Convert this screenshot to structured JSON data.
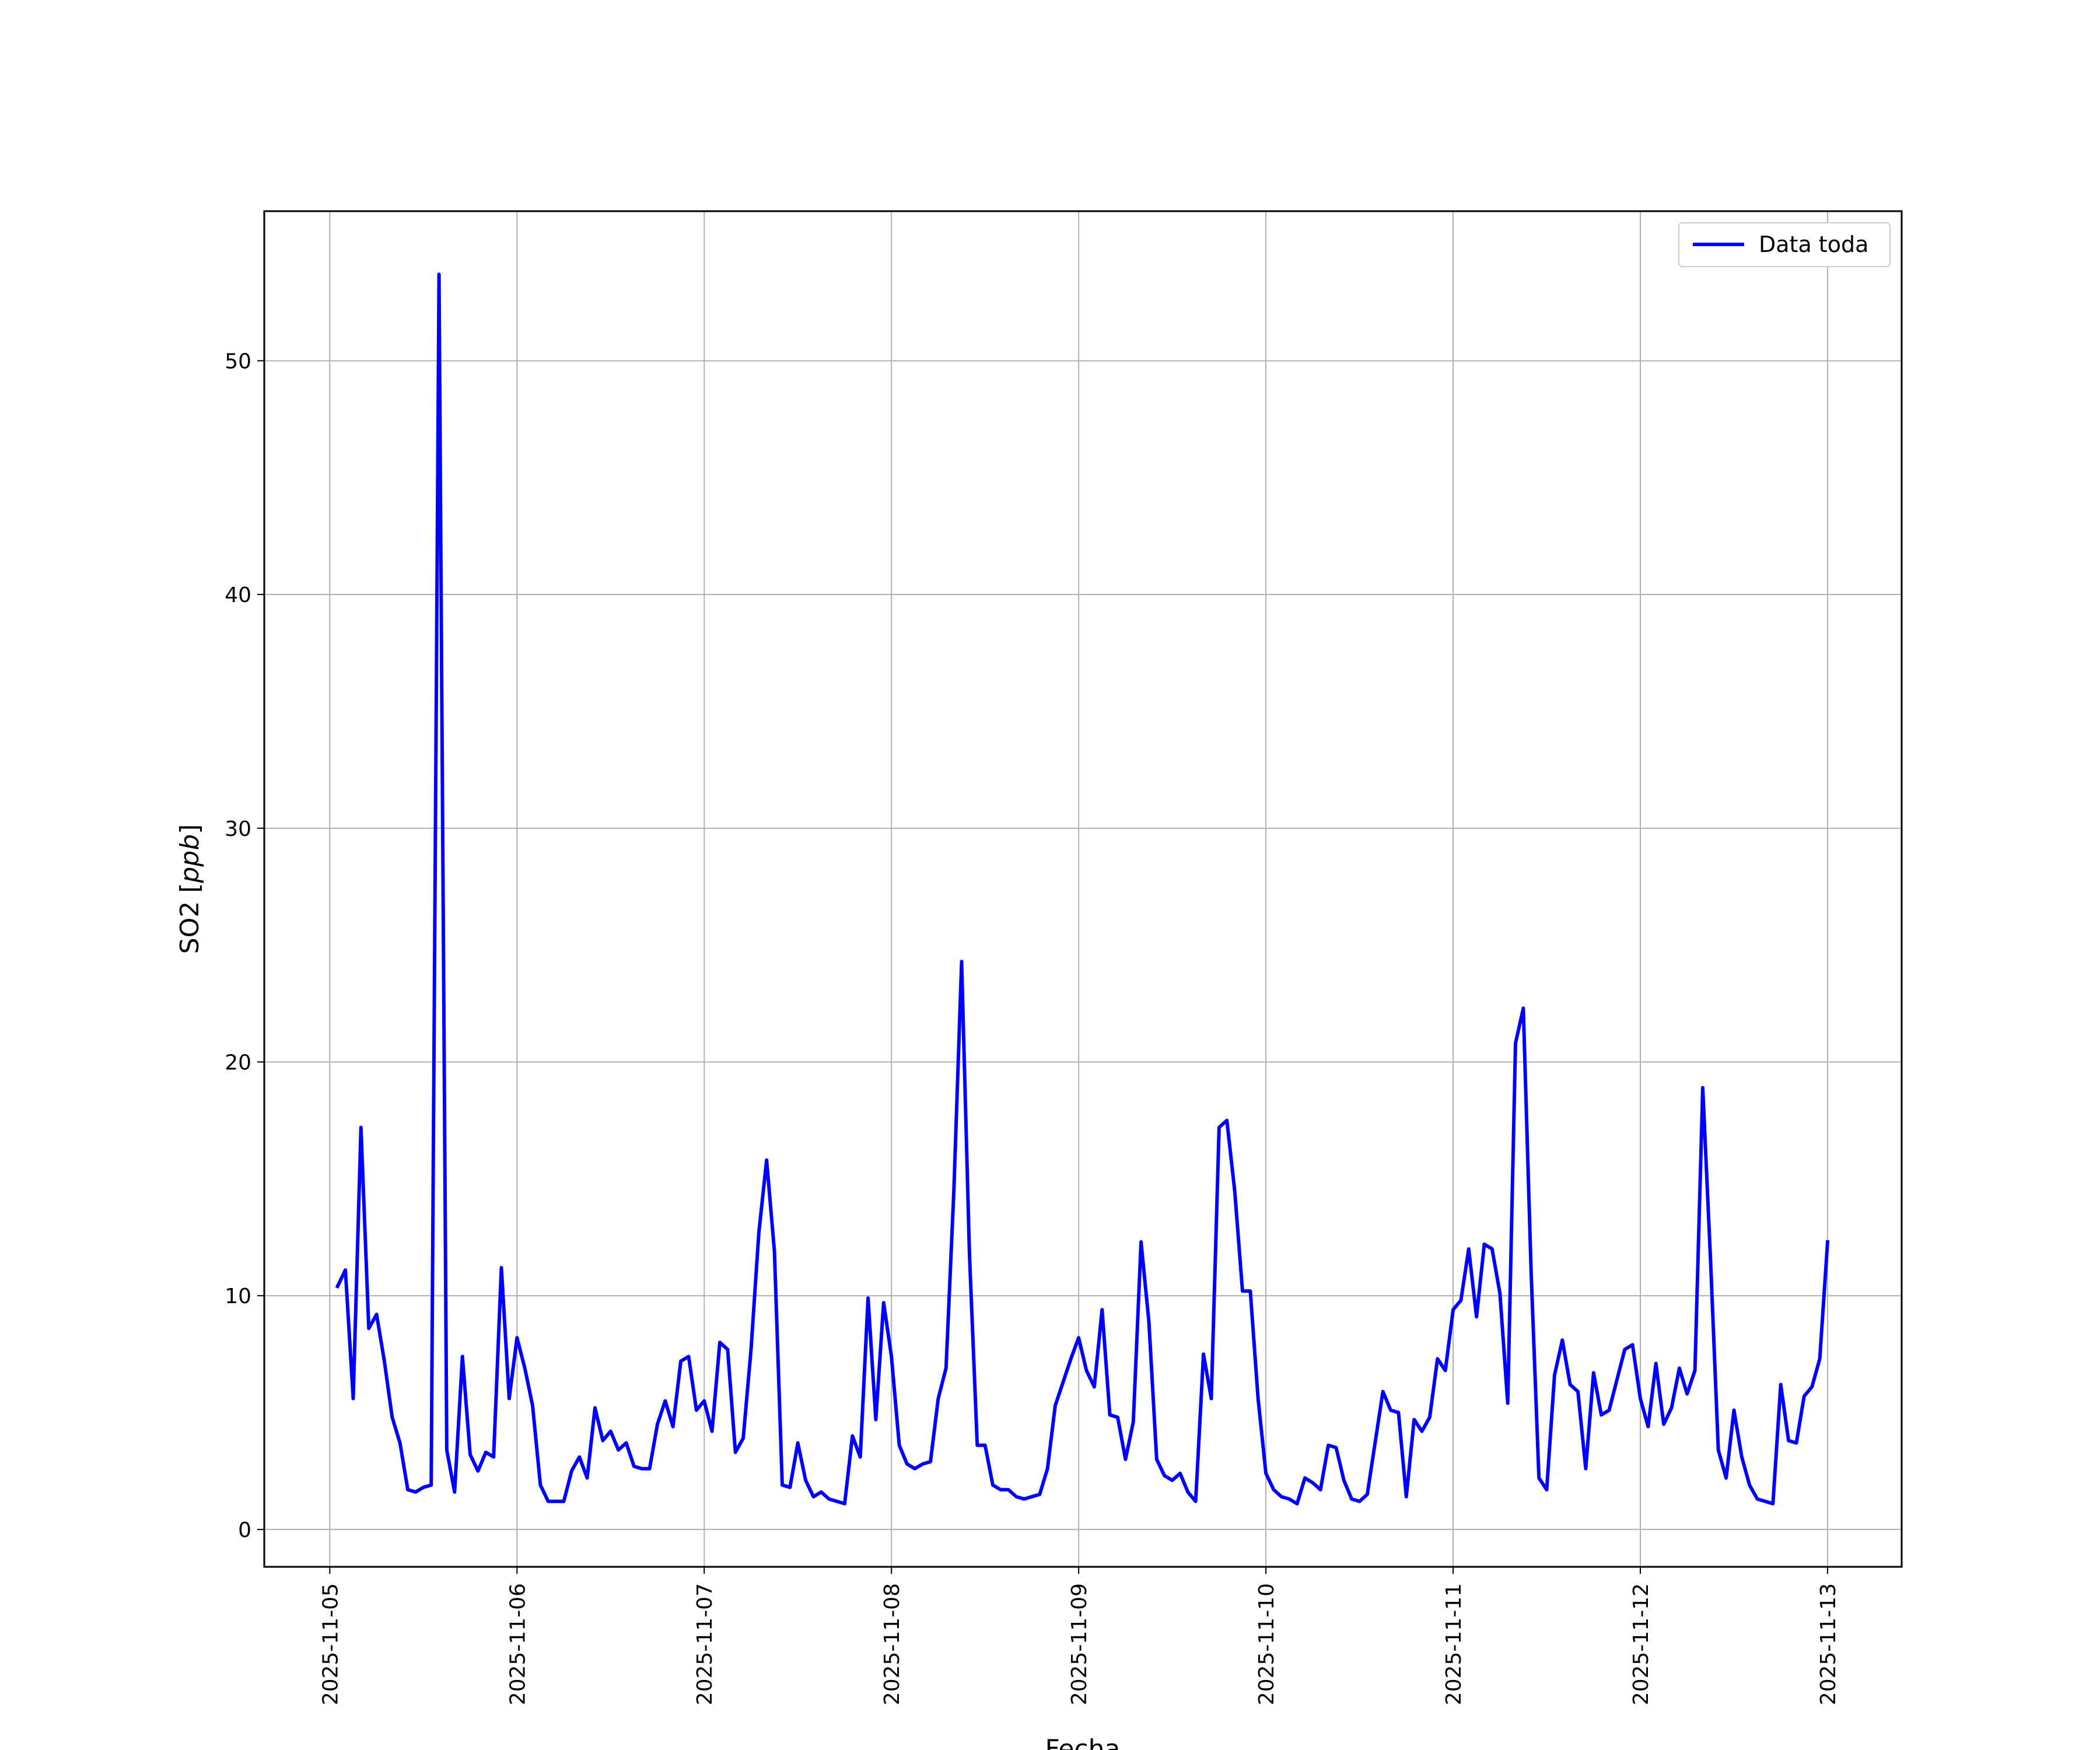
{
  "chart_data": {
    "type": "line",
    "xlabel": "Fecha",
    "ylabel": "SO2 [",
    "ylabel_unit": "ppb",
    "ylabel_close": "]",
    "ylim": [
      -1.6,
      56.4
    ],
    "xlim": [
      "2025-11-04 15:36",
      "2025-11-13 09:30"
    ],
    "grid": true,
    "legend": "top-right",
    "x_ticks": [
      "2025-11-05",
      "2025-11-06",
      "2025-11-07",
      "2025-11-08",
      "2025-11-09",
      "2025-11-10",
      "2025-11-11",
      "2025-11-12",
      "2025-11-13"
    ],
    "y_ticks": [
      "0",
      "10",
      "20",
      "30",
      "40",
      "50"
    ],
    "series": [
      {
        "name": "Data toda",
        "color": "#0000ff",
        "x": [
          "2025-11-05 01:00",
          "2025-11-05 02:00",
          "2025-11-05 03:00",
          "2025-11-05 04:00",
          "2025-11-05 05:00",
          "2025-11-05 06:00",
          "2025-11-05 07:00",
          "2025-11-05 08:00",
          "2025-11-05 09:00",
          "2025-11-05 10:00",
          "2025-11-05 11:00",
          "2025-11-05 12:00",
          "2025-11-05 13:00",
          "2025-11-05 14:00",
          "2025-11-05 15:00",
          "2025-11-05 16:00",
          "2025-11-05 17:00",
          "2025-11-05 18:00",
          "2025-11-05 19:00",
          "2025-11-05 20:00",
          "2025-11-05 21:00",
          "2025-11-05 22:00",
          "2025-11-05 23:00",
          "2025-11-06 00:00",
          "2025-11-06 01:00",
          "2025-11-06 02:00",
          "2025-11-06 03:00",
          "2025-11-06 04:00",
          "2025-11-06 05:00",
          "2025-11-06 06:00",
          "2025-11-06 07:00",
          "2025-11-06 08:00",
          "2025-11-06 09:00",
          "2025-11-06 10:00",
          "2025-11-06 11:00",
          "2025-11-06 12:00",
          "2025-11-06 13:00",
          "2025-11-06 14:00",
          "2025-11-06 15:00",
          "2025-11-06 16:00",
          "2025-11-06 17:00",
          "2025-11-06 18:00",
          "2025-11-06 19:00",
          "2025-11-06 20:00",
          "2025-11-06 21:00",
          "2025-11-06 22:00",
          "2025-11-06 23:00",
          "2025-11-07 00:00",
          "2025-11-07 01:00",
          "2025-11-07 02:00",
          "2025-11-07 03:00",
          "2025-11-07 04:00",
          "2025-11-07 05:00",
          "2025-11-07 06:00",
          "2025-11-07 07:00",
          "2025-11-07 08:00",
          "2025-11-07 09:00",
          "2025-11-07 10:00",
          "2025-11-07 11:00",
          "2025-11-07 12:00",
          "2025-11-07 13:00",
          "2025-11-07 14:00",
          "2025-11-07 15:00",
          "2025-11-07 16:00",
          "2025-11-07 17:00",
          "2025-11-07 18:00",
          "2025-11-07 19:00",
          "2025-11-07 20:00",
          "2025-11-07 21:00",
          "2025-11-07 22:00",
          "2025-11-07 23:00",
          "2025-11-08 00:00",
          "2025-11-08 01:00",
          "2025-11-08 02:00",
          "2025-11-08 03:00",
          "2025-11-08 04:00",
          "2025-11-08 05:00",
          "2025-11-08 06:00",
          "2025-11-08 07:00",
          "2025-11-08 08:00",
          "2025-11-08 09:00",
          "2025-11-08 10:00",
          "2025-11-08 11:00",
          "2025-11-08 12:00",
          "2025-11-08 13:00",
          "2025-11-08 14:00",
          "2025-11-08 15:00",
          "2025-11-08 16:00",
          "2025-11-08 17:00",
          "2025-11-08 18:00",
          "2025-11-08 19:00",
          "2025-11-08 20:00",
          "2025-11-08 21:00",
          "2025-11-08 22:00",
          "2025-11-08 23:00",
          "2025-11-09 00:00",
          "2025-11-09 01:00",
          "2025-11-09 02:00",
          "2025-11-09 03:00",
          "2025-11-09 04:00",
          "2025-11-09 05:00",
          "2025-11-09 06:00",
          "2025-11-09 07:00",
          "2025-11-09 08:00",
          "2025-11-09 09:00",
          "2025-11-09 10:00",
          "2025-11-09 11:00",
          "2025-11-09 12:00",
          "2025-11-09 13:00",
          "2025-11-09 14:00",
          "2025-11-09 15:00",
          "2025-11-09 16:00",
          "2025-11-09 17:00",
          "2025-11-09 18:00",
          "2025-11-09 19:00",
          "2025-11-09 20:00",
          "2025-11-09 21:00",
          "2025-11-09 22:00",
          "2025-11-09 23:00",
          "2025-11-10 00:00",
          "2025-11-10 01:00",
          "2025-11-10 02:00",
          "2025-11-10 03:00",
          "2025-11-10 04:00",
          "2025-11-10 05:00",
          "2025-11-10 06:00",
          "2025-11-10 07:00",
          "2025-11-10 08:00",
          "2025-11-10 09:00",
          "2025-11-10 10:00",
          "2025-11-10 11:00",
          "2025-11-10 12:00",
          "2025-11-10 13:00",
          "2025-11-10 14:00",
          "2025-11-10 15:00",
          "2025-11-10 16:00",
          "2025-11-10 17:00",
          "2025-11-10 18:00",
          "2025-11-10 19:00",
          "2025-11-10 20:00",
          "2025-11-10 21:00",
          "2025-11-10 22:00",
          "2025-11-10 23:00",
          "2025-11-11 00:00",
          "2025-11-11 01:00",
          "2025-11-11 02:00",
          "2025-11-11 03:00",
          "2025-11-11 04:00",
          "2025-11-11 05:00",
          "2025-11-11 06:00",
          "2025-11-11 07:00",
          "2025-11-11 08:00",
          "2025-11-11 09:00",
          "2025-11-11 10:00",
          "2025-11-11 11:00",
          "2025-11-11 12:00",
          "2025-11-11 13:00",
          "2025-11-11 14:00",
          "2025-11-11 15:00",
          "2025-11-11 16:00",
          "2025-11-11 17:00",
          "2025-11-11 18:00",
          "2025-11-11 19:00",
          "2025-11-11 20:00",
          "2025-11-11 21:00",
          "2025-11-11 22:00",
          "2025-11-11 23:00",
          "2025-11-12 00:00",
          "2025-11-12 01:00",
          "2025-11-12 02:00",
          "2025-11-12 03:00",
          "2025-11-12 04:00",
          "2025-11-12 05:00",
          "2025-11-12 06:00",
          "2025-11-12 07:00",
          "2025-11-12 08:00",
          "2025-11-12 09:00",
          "2025-11-12 10:00",
          "2025-11-12 11:00",
          "2025-11-12 12:00",
          "2025-11-12 13:00",
          "2025-11-12 14:00",
          "2025-11-12 15:00",
          "2025-11-12 16:00",
          "2025-11-12 17:00",
          "2025-11-12 18:00",
          "2025-11-12 19:00",
          "2025-11-12 20:00",
          "2025-11-12 21:00",
          "2025-11-12 22:00",
          "2025-11-12 23:00",
          "2025-11-13 00:00"
        ],
        "values": [
          10.4,
          11.1,
          5.6,
          17.2,
          8.6,
          9.2,
          7.2,
          4.8,
          3.7,
          1.7,
          1.6,
          1.8,
          1.9,
          53.7,
          3.4,
          1.6,
          7.4,
          3.2,
          2.5,
          3.3,
          3.1,
          11.2,
          5.6,
          8.2,
          6.9,
          5.3,
          1.9,
          1.2,
          1.2,
          1.2,
          2.5,
          3.1,
          2.2,
          5.2,
          3.8,
          4.2,
          3.4,
          3.7,
          2.7,
          2.6,
          2.6,
          4.5,
          5.5,
          4.4,
          7.2,
          7.4,
          5.1,
          5.5,
          4.2,
          8.0,
          7.7,
          3.3,
          3.9,
          7.7,
          12.7,
          15.8,
          11.9,
          1.9,
          1.8,
          3.7,
          2.1,
          1.4,
          1.6,
          1.3,
          1.2,
          1.1,
          4.0,
          3.1,
          9.9,
          4.7,
          9.7,
          7.4,
          3.6,
          2.8,
          2.6,
          2.8,
          2.9,
          5.6,
          6.9,
          14.5,
          24.3,
          11.8,
          3.6,
          3.6,
          1.9,
          1.7,
          1.7,
          1.4,
          1.3,
          1.4,
          1.5,
          2.6,
          5.3,
          6.3,
          7.3,
          8.2,
          6.8,
          6.1,
          9.4,
          4.9,
          4.8,
          3.0,
          4.6,
          12.3,
          8.9,
          3.0,
          2.3,
          2.1,
          2.4,
          1.6,
          1.2,
          7.5,
          5.6,
          17.2,
          17.5,
          14.5,
          10.2,
          10.2,
          5.6,
          2.4,
          1.7,
          1.4,
          1.3,
          1.1,
          2.2,
          2.0,
          1.7,
          3.6,
          3.5,
          2.1,
          1.3,
          1.2,
          1.5,
          3.7,
          5.9,
          5.1,
          5.0,
          1.4,
          4.7,
          4.2,
          4.8,
          7.3,
          6.8,
          9.4,
          9.8,
          12.0,
          9.1,
          12.2,
          12.0,
          10.1,
          5.4,
          20.8,
          22.3,
          11.0,
          2.2,
          1.7,
          6.6,
          8.1,
          6.2,
          5.9,
          2.6,
          6.7,
          4.9,
          5.1,
          6.4,
          7.7,
          7.9,
          5.6,
          4.4,
          7.1,
          4.5,
          5.2,
          6.9,
          5.8,
          6.8,
          18.9,
          11.5,
          3.4,
          2.2,
          5.1,
          3.1,
          1.9,
          1.3,
          1.2,
          1.1,
          6.2,
          3.8,
          3.7,
          5.7,
          6.1,
          7.3,
          12.3
        ]
      }
    ]
  }
}
